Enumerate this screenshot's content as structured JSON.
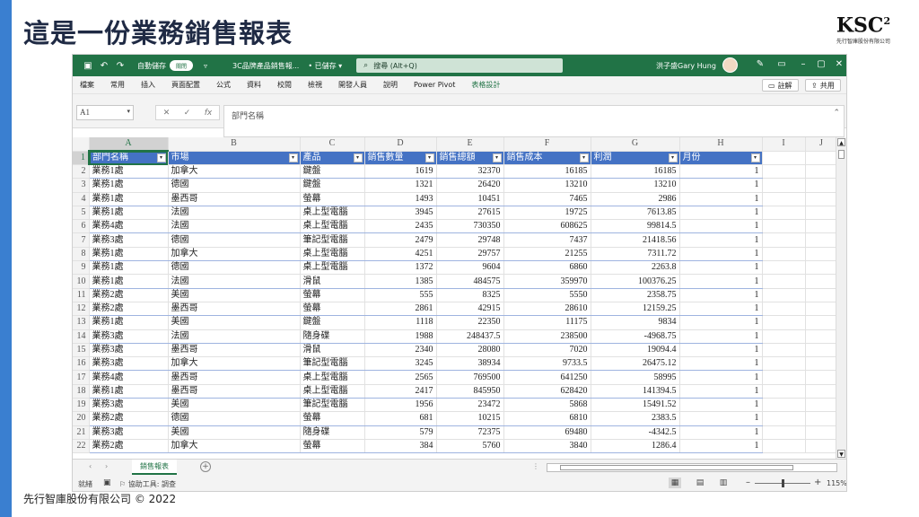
{
  "slide": {
    "title": "這是一份業務銷售報表",
    "logo_mark": "KSC",
    "logo_sup": "2",
    "logo_sub": "先行智庫股份有限公司",
    "footer": "先行智庫股份有限公司 © 2022"
  },
  "titlebar": {
    "autosave_label": "自動儲存",
    "autosave_state": "關閉",
    "document_title": "3C品牌產品銷售報...",
    "saved_state": "• 已儲存 ▾",
    "search_placeholder": "搜尋 (Alt+Q)",
    "user_name": "洪子盛Gary Hung"
  },
  "menu": {
    "items": [
      "檔案",
      "常用",
      "插入",
      "頁面配置",
      "公式",
      "資料",
      "校閱",
      "檢視",
      "開發人員",
      "說明",
      "Power Pivot",
      "表格設計"
    ],
    "comments_label": "註解",
    "share_label": "共用"
  },
  "formula": {
    "cell_ref": "A1",
    "value": "部門名稱"
  },
  "columns": [
    "A",
    "B",
    "C",
    "D",
    "E",
    "F",
    "G",
    "H",
    "I",
    "J"
  ],
  "table": {
    "headers": [
      "部門名稱",
      "市場",
      "產品",
      "銷售數量",
      "銷售總額",
      "銷售成本",
      "利潤",
      "月份"
    ],
    "rows": [
      [
        "業務1處",
        "加拿大",
        "鍵盤",
        "1619",
        "32370",
        "16185",
        "16185",
        "1"
      ],
      [
        "業務1處",
        "德國",
        "鍵盤",
        "1321",
        "26420",
        "13210",
        "13210",
        "1"
      ],
      [
        "業務1處",
        "墨西哥",
        "螢幕",
        "1493",
        "10451",
        "7465",
        "2986",
        "1"
      ],
      [
        "業務1處",
        "法國",
        "桌上型電腦",
        "3945",
        "27615",
        "19725",
        "7613.85",
        "1"
      ],
      [
        "業務4處",
        "法國",
        "桌上型電腦",
        "2435",
        "730350",
        "608625",
        "99814.5",
        "1"
      ],
      [
        "業務3處",
        "德國",
        "筆記型電腦",
        "2479",
        "29748",
        "7437",
        "21418.56",
        "1"
      ],
      [
        "業務1處",
        "加拿大",
        "桌上型電腦",
        "4251",
        "29757",
        "21255",
        "7311.72",
        "1"
      ],
      [
        "業務1處",
        "德國",
        "桌上型電腦",
        "1372",
        "9604",
        "6860",
        "2263.8",
        "1"
      ],
      [
        "業務1處",
        "法國",
        "滑鼠",
        "1385",
        "484575",
        "359970",
        "100376.25",
        "1"
      ],
      [
        "業務2處",
        "美國",
        "螢幕",
        "555",
        "8325",
        "5550",
        "2358.75",
        "1"
      ],
      [
        "業務2處",
        "墨西哥",
        "螢幕",
        "2861",
        "42915",
        "28610",
        "12159.25",
        "1"
      ],
      [
        "業務1處",
        "美國",
        "鍵盤",
        "1118",
        "22350",
        "11175",
        "9834",
        "1"
      ],
      [
        "業務3處",
        "法國",
        "隨身碟",
        "1988",
        "248437.5",
        "238500",
        "-4968.75",
        "1"
      ],
      [
        "業務3處",
        "墨西哥",
        "滑鼠",
        "2340",
        "28080",
        "7020",
        "19094.4",
        "1"
      ],
      [
        "業務3處",
        "加拿大",
        "筆記型電腦",
        "3245",
        "38934",
        "9733.5",
        "26475.12",
        "1"
      ],
      [
        "業務4處",
        "墨西哥",
        "桌上型電腦",
        "2565",
        "769500",
        "641250",
        "58995",
        "1"
      ],
      [
        "業務1處",
        "墨西哥",
        "桌上型電腦",
        "2417",
        "845950",
        "628420",
        "141394.5",
        "1"
      ],
      [
        "業務3處",
        "美國",
        "筆記型電腦",
        "1956",
        "23472",
        "5868",
        "15491.52",
        "1"
      ],
      [
        "業務2處",
        "德國",
        "螢幕",
        "681",
        "10215",
        "6810",
        "2383.5",
        "1"
      ],
      [
        "業務3處",
        "美國",
        "隨身碟",
        "579",
        "72375",
        "69480",
        "-4342.5",
        "1"
      ],
      [
        "業務2處",
        "加拿大",
        "螢幕",
        "384",
        "5760",
        "3840",
        "1286.4",
        "1"
      ]
    ]
  },
  "sheet_tab": "銷售報表",
  "status": {
    "ready": "就緒",
    "accessibility": "協助工具: 調查",
    "zoom": "115%"
  },
  "colors": {
    "excel_green": "#217346",
    "table_header_blue": "#4472c4",
    "slide_accent": "#3a7fd0"
  }
}
